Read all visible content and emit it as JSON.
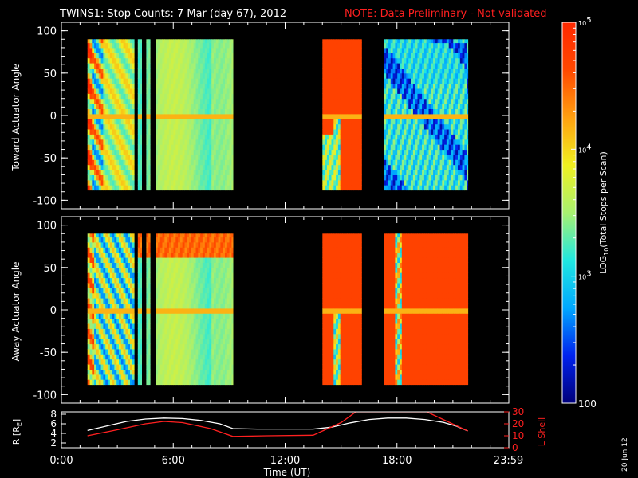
{
  "title": {
    "main": "TWINS1: Stop Counts:  7 Mar (day  67), 2012",
    "note": "NOTE: Data Preliminary - Not validated",
    "note_color": "#ff2020"
  },
  "side_date": "20 Jun 12",
  "chart_data": [
    {
      "type": "heatmap",
      "panel": "toward",
      "ylabel": "Toward Actuator Angle",
      "ylim": [
        -110,
        110
      ],
      "yticks": [
        "100",
        "50",
        "0",
        "-50",
        "-100"
      ],
      "xlim_hours": [
        0,
        24
      ],
      "data_time_ranges_hours": [
        [
          1.4,
          3.9
        ],
        [
          4.1,
          4.3
        ],
        [
          4.55,
          4.75
        ],
        [
          5.05,
          9.2
        ],
        [
          14.0,
          16.1
        ],
        [
          17.3,
          21.8
        ]
      ],
      "data_angle_range": [
        -88,
        90
      ],
      "dominant_colors": {
        "1.4-3.9": "#f0a030",
        "5.05-9.2": "#9aee6a",
        "14.0-16.1": "#ff4a10",
        "17.3-21.8": "#50e8e0"
      }
    },
    {
      "type": "heatmap",
      "panel": "away",
      "ylabel": "Away Actuator Angle",
      "ylim": [
        -110,
        110
      ],
      "yticks": [
        "100",
        "50",
        "0",
        "-50",
        "-100"
      ],
      "xlim_hours": [
        0,
        24
      ],
      "data_time_ranges_hours": [
        [
          1.4,
          3.9
        ],
        [
          4.1,
          4.3
        ],
        [
          4.55,
          4.75
        ],
        [
          5.05,
          9.2
        ],
        [
          14.0,
          16.1
        ],
        [
          17.3,
          21.8
        ]
      ],
      "data_angle_range": [
        -88,
        90
      ],
      "dominant_colors": {
        "1.4-3.9": "#7ae6c0",
        "5.05-9.2": "#9aee6a",
        "14.0-16.1": "#ff4a10",
        "17.3-21.8": "#ff4a10"
      }
    },
    {
      "type": "line",
      "panel": "orbit",
      "xlabel": "Time (UT)",
      "xticks": [
        "0:00",
        "6:00",
        "12:00",
        "18:00",
        "23:59"
      ],
      "ylabel_left": "R [RE]",
      "ylabel_left_main": "R [R",
      "ylabel_left_sub": "E",
      "ylabel_left_end": "]",
      "ylim_left": [
        1,
        8.5
      ],
      "yticks_left": [
        "8",
        "6",
        "4",
        "2"
      ],
      "ylabel_right": "L Shell",
      "ylim_right": [
        0,
        30
      ],
      "yticks_right": [
        "30",
        "20",
        "10",
        "0"
      ],
      "series": [
        {
          "name": "R",
          "color": "#ffffff",
          "x": [
            1.4,
            2.5,
            3.5,
            4.5,
            5.5,
            6.5,
            7.5,
            8.5,
            9.2,
            10.5,
            12,
            13.5,
            14.5,
            15.5,
            16.5,
            17.5,
            18.5,
            19.5,
            20.5,
            21.2,
            21.8
          ],
          "y": [
            4.6,
            5.6,
            6.5,
            7.0,
            7.2,
            7.1,
            6.7,
            6.0,
            5.0,
            4.9,
            4.9,
            4.9,
            5.3,
            6.2,
            6.9,
            7.2,
            7.2,
            6.9,
            6.3,
            5.5,
            4.5
          ]
        },
        {
          "name": "L Shell",
          "color": "#ff2020",
          "x": [
            1.4,
            3.0,
            4.5,
            5.5,
            6.5,
            8.0,
            9.2,
            11.0,
            13.5,
            15.0,
            15.8,
            16.2,
            19.2,
            19.6,
            21.8
          ],
          "y": [
            10,
            15,
            20,
            22,
            21,
            16,
            9.5,
            10,
            10.5,
            21,
            30,
            30,
            30,
            30,
            14
          ]
        }
      ]
    }
  ],
  "colorbar": {
    "label": "LOG10(Total Stops per Scan)",
    "label_main": "LOG",
    "label_sub": "10",
    "label_rest": "(Total Stops per Scan)",
    "ticks": [
      "10^5",
      "10^4",
      "10^3",
      "100"
    ],
    "tick_sup": [
      "5",
      "4",
      "3"
    ],
    "tick_base": "10",
    "bottom_label": "100",
    "range_log": [
      2,
      5
    ],
    "colors": [
      "#00007a",
      "#0022ee",
      "#00a8ff",
      "#20e8e0",
      "#a8f070",
      "#f0f020",
      "#ffa010",
      "#ff4800",
      "#ff2800"
    ]
  }
}
